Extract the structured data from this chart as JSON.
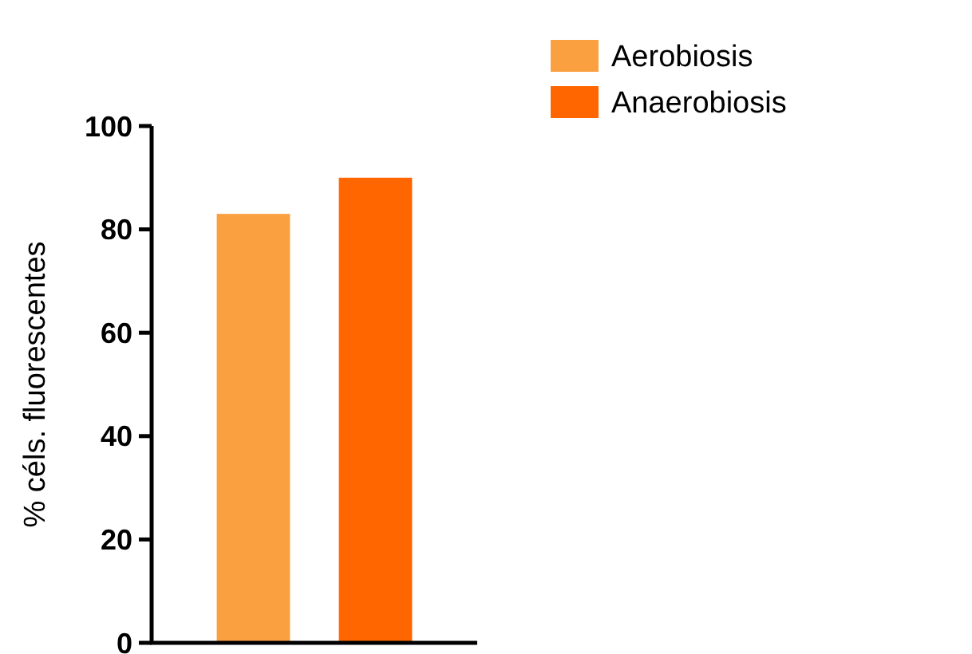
{
  "chart_data": {
    "type": "bar",
    "ylabel": "% céls. fluorescentes",
    "categories": [
      null
    ],
    "series": [
      {
        "name": "Aerobiosis",
        "color": "#fba040",
        "values": [
          83
        ]
      },
      {
        "name": "Anaerobiosis",
        "color": "#ff6600",
        "values": [
          90
        ]
      }
    ],
    "ylim": [
      0,
      100
    ],
    "yticks": [
      0,
      20,
      40,
      60,
      80,
      100
    ],
    "grid": false,
    "legend": "top right",
    "tick_labels": "y"
  }
}
